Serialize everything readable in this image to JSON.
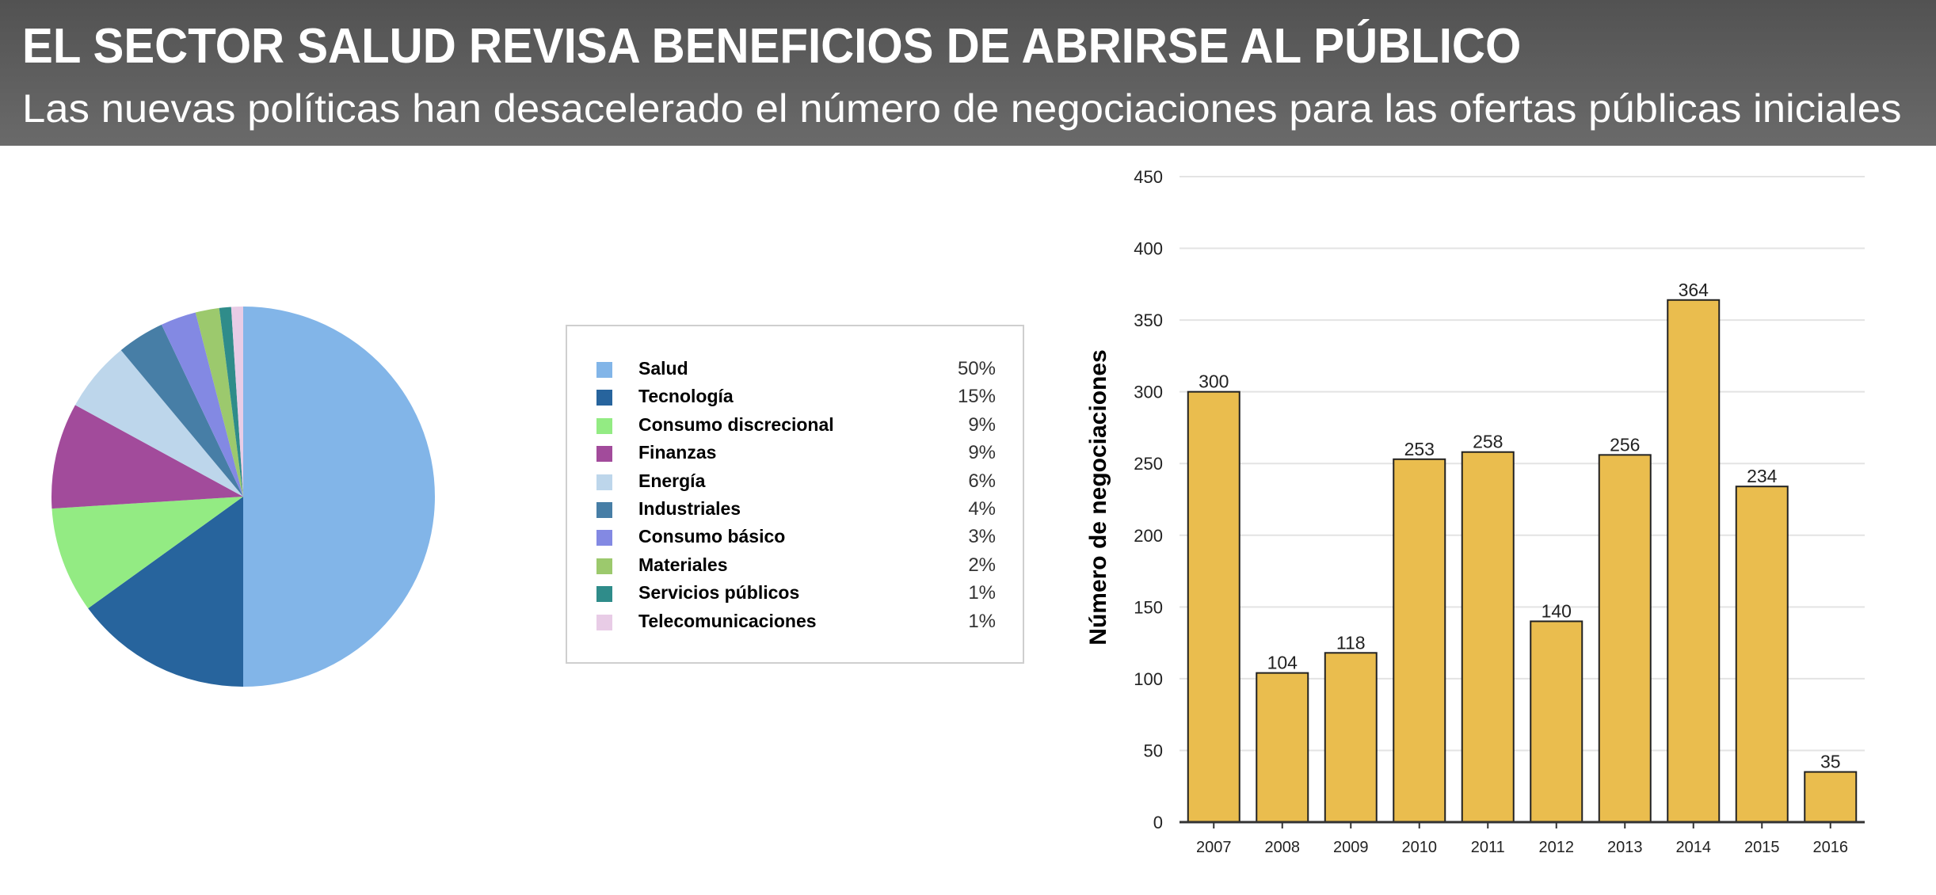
{
  "header": {
    "title": "EL SECTOR SALUD REVISA BENEFICIOS DE ABRIRSE AL PÚBLICO",
    "subtitle": "Las nuevas políticas han desacelerado el número de negociaciones para las ofertas públicas iniciales"
  },
  "chart_data": [
    {
      "type": "pie",
      "direction": "clockwise from top",
      "legend_placement": "right",
      "slices": [
        {
          "label": "Salud",
          "value": 50,
          "display": "50%",
          "color": "#82b5e8"
        },
        {
          "label": "Tecnología",
          "value": 15,
          "display": "15%",
          "color": "#27649d"
        },
        {
          "label": "Consumo discrecional",
          "value": 9,
          "display": "9%",
          "color": "#93eb83"
        },
        {
          "label": "Finanzas",
          "value": 9,
          "display": "9%",
          "color": "#a24b9b"
        },
        {
          "label": "Energía",
          "value": 6,
          "display": "6%",
          "color": "#bdd6eb"
        },
        {
          "label": "Industriales",
          "value": 4,
          "display": "4%",
          "color": "#477ea6"
        },
        {
          "label": "Consumo básico",
          "value": 3,
          "display": "3%",
          "color": "#8389e3"
        },
        {
          "label": "Materiales",
          "value": 2,
          "display": "2%",
          "color": "#9cc96d"
        },
        {
          "label": "Servicios públicos",
          "value": 1,
          "display": "1%",
          "color": "#2f8c8a"
        },
        {
          "label": "Telecomunicaciones",
          "value": 1,
          "display": "1%",
          "color": "#e8cce6"
        }
      ]
    },
    {
      "type": "bar",
      "categories": [
        "2007",
        "2008",
        "2009",
        "2010",
        "2011",
        "2012",
        "2013",
        "2014",
        "2015",
        "2016"
      ],
      "values": [
        300,
        104,
        118,
        253,
        258,
        140,
        256,
        364,
        234,
        35
      ],
      "xlabel": "",
      "ylabel": "Número de negociaciones",
      "ylim": [
        0,
        450
      ],
      "yticks": [
        0,
        50,
        100,
        150,
        200,
        250,
        300,
        350,
        400,
        450
      ],
      "grid": true,
      "bar_color": "#eabd4e",
      "data_labels": true
    }
  ]
}
